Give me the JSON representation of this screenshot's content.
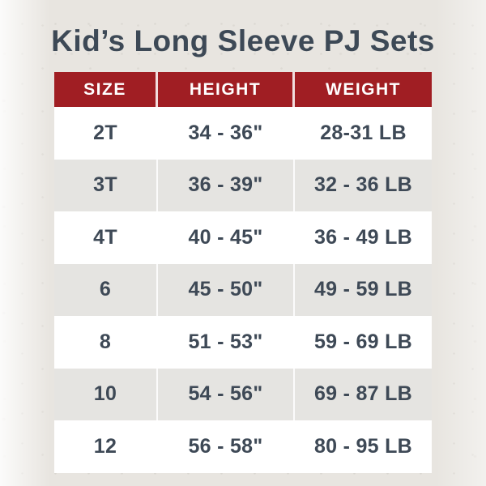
{
  "page": {
    "title": "Kid’s Long Sleeve PJ Sets"
  },
  "colors": {
    "paper_background": "#e8e5e0",
    "header_background": "#a01e23",
    "header_text": "#ffffff",
    "title_text": "#3d4956",
    "cell_text": "#3e4956",
    "row_white": "#ffffff",
    "row_gray": "#e5e4e1"
  },
  "table": {
    "columns": [
      "SIZE",
      "HEIGHT",
      "WEIGHT"
    ],
    "rows": [
      {
        "size": "2T",
        "height": "34 - 36\"",
        "weight": "28-31 LB"
      },
      {
        "size": "3T",
        "height": "36 - 39\"",
        "weight": "32 - 36 LB"
      },
      {
        "size": "4T",
        "height": "40 - 45\"",
        "weight": "36 - 49 LB"
      },
      {
        "size": "6",
        "height": "45 - 50\"",
        "weight": "49 - 59 LB"
      },
      {
        "size": "8",
        "height": "51 - 53\"",
        "weight": "59 - 69 LB"
      },
      {
        "size": "10",
        "height": "54 - 56\"",
        "weight": "69 - 87 LB"
      },
      {
        "size": "12",
        "height": "56 - 58\"",
        "weight": "80 - 95 LB"
      }
    ]
  },
  "chart_data": {
    "type": "table",
    "title": "Kid’s Long Sleeve PJ Sets",
    "columns": [
      "SIZE",
      "HEIGHT",
      "WEIGHT"
    ],
    "rows": [
      [
        "2T",
        "34 - 36\"",
        "28-31 LB"
      ],
      [
        "3T",
        "36 - 39\"",
        "32 - 36 LB"
      ],
      [
        "4T",
        "40 - 45\"",
        "36 - 49 LB"
      ],
      [
        "6",
        "45 - 50\"",
        "49 - 59 LB"
      ],
      [
        "8",
        "51 - 53\"",
        "59 - 69 LB"
      ],
      [
        "10",
        "54 - 56\"",
        "69 - 87 LB"
      ],
      [
        "12",
        "56 - 58\"",
        "80 - 95 LB"
      ]
    ],
    "layout": {
      "header_style": "dark-red band with white bold text",
      "row_striping": "white / light-gray alternating starting with white",
      "alignment": "all cells centered"
    }
  }
}
